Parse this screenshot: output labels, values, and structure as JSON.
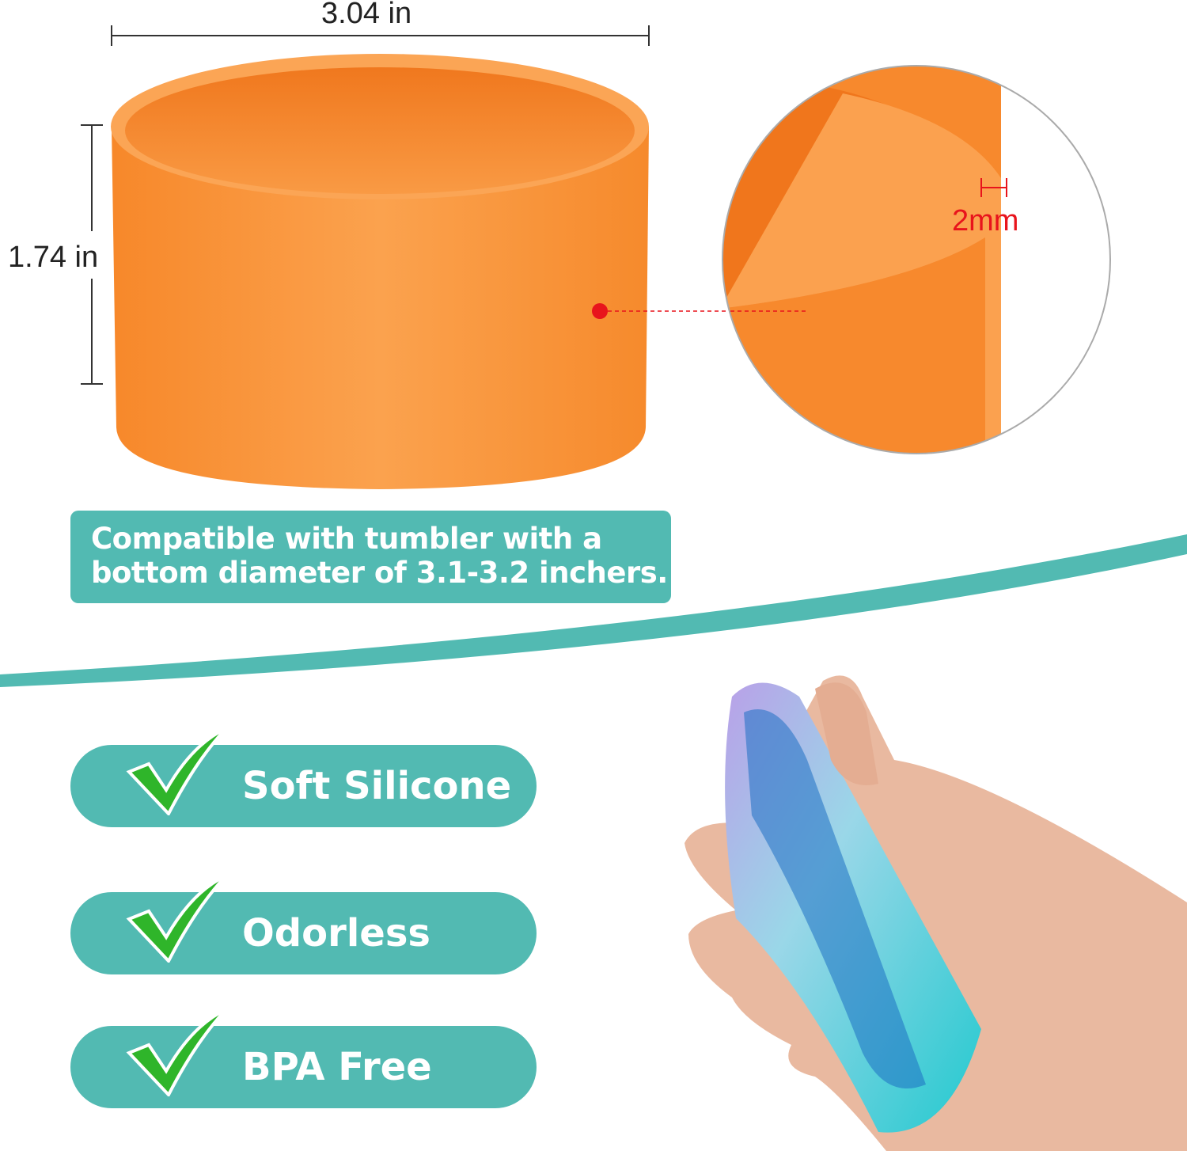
{
  "dimensions": {
    "width_label": "3.04 in",
    "height_label": "1.74 in",
    "thickness_label": "2mm"
  },
  "compatibility_note": {
    "line1": "Compatible with tumbler with a",
    "line2": "bottom diameter of 3.1-3.2 inchers."
  },
  "features": [
    {
      "label": "Soft Silicone",
      "icon": "checkmark-icon"
    },
    {
      "label": "Odorless",
      "icon": "checkmark-icon"
    },
    {
      "label": "BPA Free",
      "icon": "checkmark-icon"
    }
  ],
  "colors": {
    "teal": "#52bab2",
    "orange": "#f7923a",
    "check_green": "#2fb52a",
    "marker_red": "#e8141c"
  }
}
